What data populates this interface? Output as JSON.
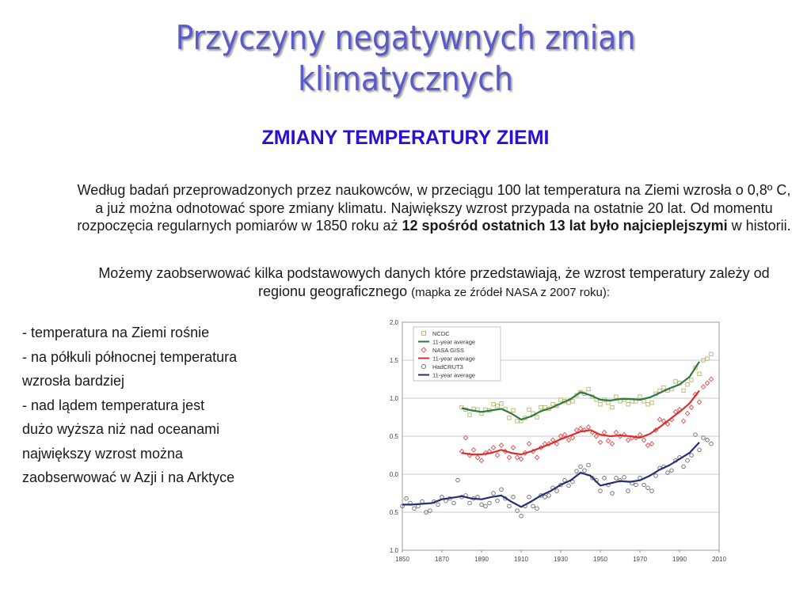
{
  "slide": {
    "title_line1": "Przyczyny negatywnych zmian",
    "title_line2": "klimatycznych",
    "subtitle": "ZMIANY TEMPERATURY ZIEMI",
    "para1_a": "Według badań przeprowadzonych przez naukowców, w przeciągu 100 lat temperatura na Ziemi wzrosła o 0,8º C, a już można odnotować  spore zmiany klimatu. Największy wzrost przypada na ostatnie 20 lat. Od momentu rozpoczęcia regularnych pomiarów w 1850 roku aż ",
    "para1_bold": "12 spośród ostatnich 13 lat było najcieplejszymi",
    "para1_c": " w historii.",
    "para2_a": "Możemy zaobserwować kilka podstawowych danych które przedstawiają, że wzrost temperatury zależy od regionu geograficznego ",
    "para2_small": "(mapka ze źródeł NASA z 2007 roku):",
    "bullets": [
      "- temperatura na Ziemi rośnie",
      "- na półkuli północnej temperatura",
      "wzrosła bardziej",
      "- nad lądem temperatura jest",
      "dużo wyższa niż nad oceanami",
      "największy wzrost można",
      "zaobserwować w Azji i na Arktyce"
    ]
  },
  "chart_data": {
    "type": "line",
    "title": "",
    "xlabel": "",
    "ylabel": "",
    "xlim": [
      1850,
      2010
    ],
    "ylim": [
      -1.0,
      2.0
    ],
    "grid": true,
    "legend_position": "top-left",
    "x_ticks": [
      1850,
      1870,
      1890,
      1910,
      1930,
      1950,
      1970,
      1990,
      2010
    ],
    "x_tick_labels": [
      "1850",
      "1870",
      "1890",
      "1910",
      "1930",
      "1950",
      "1970",
      "1990",
      "2010"
    ],
    "y_ticks": [
      -1.0,
      -0.5,
      0.0,
      0.5,
      1.0,
      1.5,
      2.0
    ],
    "y_tick_labels": [
      "1.0",
      "0.5",
      "0.0",
      "0.5",
      "1.0",
      "1.5",
      "2.0"
    ],
    "series": [
      {
        "name": "NCDC",
        "kind": "scatter",
        "marker": "square",
        "color": "#b4b46e",
        "x": [
          1880,
          1882,
          1884,
          1886,
          1888,
          1890,
          1892,
          1894,
          1896,
          1898,
          1900,
          1902,
          1904,
          1906,
          1908,
          1910,
          1912,
          1914,
          1916,
          1918,
          1920,
          1922,
          1924,
          1926,
          1928,
          1930,
          1932,
          1934,
          1936,
          1938,
          1940,
          1942,
          1944,
          1946,
          1948,
          1950,
          1952,
          1954,
          1956,
          1958,
          1960,
          1962,
          1964,
          1966,
          1968,
          1970,
          1972,
          1974,
          1976,
          1978,
          1980,
          1982,
          1984,
          1986,
          1988,
          1990,
          1992,
          1994,
          1996,
          1998,
          2000,
          2002,
          2004,
          2006
        ],
        "y": [
          0.88,
          0.85,
          0.78,
          0.86,
          0.85,
          0.8,
          0.85,
          0.84,
          0.92,
          0.9,
          0.93,
          0.86,
          0.74,
          0.84,
          0.7,
          0.7,
          0.74,
          0.85,
          0.8,
          0.75,
          0.88,
          0.88,
          0.86,
          0.92,
          0.9,
          0.98,
          0.96,
          0.94,
          0.96,
          1.04,
          1.08,
          1.06,
          1.12,
          1.02,
          0.98,
          0.92,
          0.98,
          0.94,
          0.88,
          1.02,
          0.96,
          0.98,
          0.92,
          0.96,
          0.96,
          1.02,
          0.96,
          0.92,
          0.94,
          1.06,
          1.1,
          1.14,
          1.1,
          1.12,
          1.22,
          1.2,
          1.1,
          1.18,
          1.24,
          1.4,
          1.32,
          1.5,
          1.52,
          1.58
        ]
      },
      {
        "name": "11-year average",
        "kind": "line",
        "color": "#2e7a3c",
        "x": [
          1880,
          1885,
          1890,
          1895,
          1900,
          1905,
          1910,
          1915,
          1920,
          1925,
          1930,
          1935,
          1940,
          1945,
          1950,
          1955,
          1960,
          1965,
          1970,
          1975,
          1980,
          1985,
          1990,
          1995,
          2000
        ],
        "y": [
          0.87,
          0.84,
          0.82,
          0.84,
          0.86,
          0.8,
          0.72,
          0.76,
          0.83,
          0.87,
          0.93,
          0.99,
          1.08,
          1.04,
          0.98,
          0.97,
          0.99,
          0.99,
          0.98,
          1.01,
          1.07,
          1.13,
          1.18,
          1.28,
          1.48
        ]
      },
      {
        "name": "NASA GISS",
        "kind": "scatter",
        "marker": "diamond",
        "color": "#e04a4a",
        "x": [
          1880,
          1882,
          1884,
          1886,
          1888,
          1890,
          1892,
          1894,
          1896,
          1898,
          1900,
          1902,
          1904,
          1906,
          1908,
          1910,
          1912,
          1914,
          1916,
          1918,
          1920,
          1922,
          1924,
          1926,
          1928,
          1930,
          1932,
          1934,
          1936,
          1938,
          1940,
          1942,
          1944,
          1946,
          1948,
          1950,
          1952,
          1954,
          1956,
          1958,
          1960,
          1962,
          1964,
          1966,
          1968,
          1970,
          1972,
          1974,
          1976,
          1978,
          1980,
          1982,
          1984,
          1986,
          1988,
          1990,
          1992,
          1994,
          1996,
          1998,
          2000,
          2002,
          2004,
          2006
        ],
        "y": [
          0.3,
          0.48,
          0.25,
          0.32,
          0.22,
          0.18,
          0.28,
          0.3,
          0.35,
          0.25,
          0.38,
          0.3,
          0.22,
          0.35,
          0.22,
          0.2,
          0.28,
          0.4,
          0.3,
          0.22,
          0.35,
          0.4,
          0.4,
          0.45,
          0.4,
          0.5,
          0.52,
          0.45,
          0.48,
          0.58,
          0.6,
          0.58,
          0.62,
          0.55,
          0.5,
          0.42,
          0.55,
          0.44,
          0.4,
          0.55,
          0.5,
          0.52,
          0.45,
          0.48,
          0.48,
          0.52,
          0.45,
          0.38,
          0.4,
          0.58,
          0.72,
          0.7,
          0.66,
          0.72,
          0.82,
          0.85,
          0.7,
          0.8,
          0.88,
          1.05,
          0.95,
          1.15,
          1.2,
          1.25
        ]
      },
      {
        "name": "11-year average",
        "kind": "line",
        "color": "#d83030",
        "x": [
          1880,
          1885,
          1890,
          1895,
          1900,
          1905,
          1910,
          1915,
          1920,
          1925,
          1930,
          1935,
          1940,
          1945,
          1950,
          1955,
          1960,
          1965,
          1970,
          1975,
          1980,
          1985,
          1990,
          1995,
          2000
        ],
        "y": [
          0.28,
          0.26,
          0.26,
          0.28,
          0.32,
          0.28,
          0.26,
          0.3,
          0.35,
          0.4,
          0.46,
          0.51,
          0.56,
          0.58,
          0.52,
          0.5,
          0.51,
          0.5,
          0.48,
          0.53,
          0.62,
          0.72,
          0.82,
          0.93,
          1.1
        ]
      },
      {
        "name": "HadCRUT3",
        "kind": "scatter",
        "marker": "circle",
        "color": "#6a6a6a",
        "x": [
          1850,
          1852,
          1854,
          1856,
          1858,
          1860,
          1862,
          1864,
          1866,
          1868,
          1870,
          1872,
          1874,
          1876,
          1878,
          1880,
          1882,
          1884,
          1886,
          1888,
          1890,
          1892,
          1894,
          1896,
          1898,
          1900,
          1902,
          1904,
          1906,
          1908,
          1910,
          1912,
          1914,
          1916,
          1918,
          1920,
          1922,
          1924,
          1926,
          1928,
          1930,
          1932,
          1934,
          1936,
          1938,
          1940,
          1942,
          1944,
          1946,
          1948,
          1950,
          1952,
          1954,
          1956,
          1958,
          1960,
          1962,
          1964,
          1966,
          1968,
          1970,
          1972,
          1974,
          1976,
          1978,
          1980,
          1982,
          1984,
          1986,
          1988,
          1990,
          1992,
          1994,
          1996,
          1998,
          2000,
          2002,
          2004,
          2006
        ],
        "y": [
          -0.42,
          -0.32,
          -0.38,
          -0.45,
          -0.42,
          -0.36,
          -0.5,
          -0.48,
          -0.36,
          -0.4,
          -0.3,
          -0.35,
          -0.32,
          -0.38,
          -0.08,
          -0.3,
          -0.28,
          -0.38,
          -0.32,
          -0.3,
          -0.4,
          -0.42,
          -0.38,
          -0.25,
          -0.35,
          -0.2,
          -0.32,
          -0.42,
          -0.3,
          -0.48,
          -0.55,
          -0.42,
          -0.3,
          -0.42,
          -0.45,
          -0.28,
          -0.3,
          -0.28,
          -0.18,
          -0.22,
          -0.14,
          -0.08,
          -0.15,
          -0.1,
          0.04,
          0.1,
          0.05,
          0.12,
          -0.05,
          -0.08,
          -0.22,
          -0.05,
          -0.14,
          -0.25,
          -0.05,
          -0.08,
          -0.04,
          -0.22,
          -0.12,
          -0.14,
          -0.05,
          -0.14,
          -0.18,
          -0.22,
          -0.02,
          0.08,
          0.1,
          0.02,
          0.05,
          0.18,
          0.22,
          0.1,
          0.18,
          0.25,
          0.52,
          0.32,
          0.48,
          0.45,
          0.4
        ]
      },
      {
        "name": "11-year average",
        "kind": "line",
        "color": "#262d7a",
        "x": [
          1850,
          1855,
          1860,
          1865,
          1870,
          1875,
          1880,
          1885,
          1890,
          1895,
          1900,
          1905,
          1910,
          1915,
          1920,
          1925,
          1930,
          1935,
          1940,
          1945,
          1950,
          1955,
          1960,
          1965,
          1970,
          1975,
          1980,
          1985,
          1990,
          1995,
          2000
        ],
        "y": [
          -0.4,
          -0.4,
          -0.39,
          -0.38,
          -0.33,
          -0.31,
          -0.29,
          -0.32,
          -0.33,
          -0.3,
          -0.28,
          -0.36,
          -0.43,
          -0.36,
          -0.28,
          -0.22,
          -0.14,
          -0.08,
          0.02,
          -0.02,
          -0.15,
          -0.12,
          -0.09,
          -0.1,
          -0.08,
          -0.02,
          0.06,
          0.12,
          0.2,
          0.28,
          0.42
        ]
      }
    ]
  }
}
